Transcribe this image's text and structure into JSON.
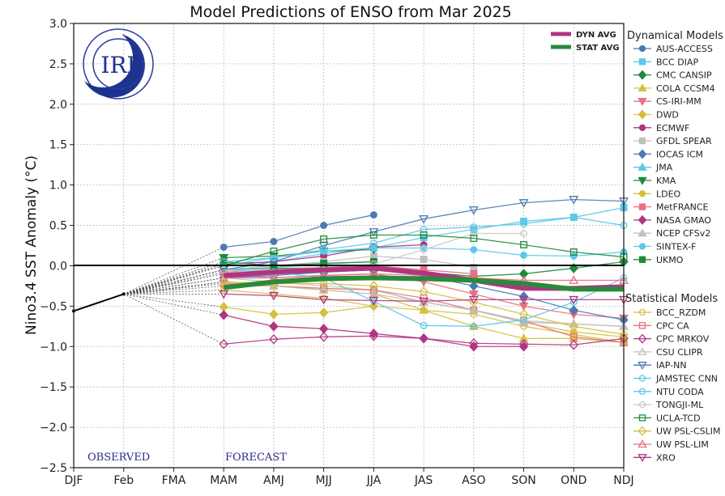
{
  "chart_data": {
    "type": "line",
    "title": "Model Predictions of ENSO from Mar 2025",
    "xlabel": "",
    "ylabel": "Nino3.4 SST Anomaly (°C)",
    "x": [
      "DJF",
      "Feb",
      "FMA",
      "MAM",
      "AMJ",
      "MJJ",
      "JJA",
      "JAS",
      "ASO",
      "SON",
      "OND",
      "NDJ"
    ],
    "ylim": [
      -2.5,
      3.0
    ],
    "yticks": [
      3.0,
      2.5,
      2.0,
      1.5,
      1.0,
      0.5,
      0.0,
      -0.5,
      -1.0,
      -1.5,
      -2.0,
      -2.5
    ],
    "ytick_labels": [
      "3.0",
      "2.5",
      "2.0",
      "1.5",
      "1.0",
      "0.5",
      "0.0",
      "−0.5",
      "−1.0",
      "−1.5",
      "−2.0",
      "−2.5"
    ],
    "grid": true,
    "logo_text": "IRI",
    "annotations": {
      "observed": "OBSERVED",
      "forecast": "FORECAST"
    },
    "observed": {
      "x": [
        "DJF",
        "Feb"
      ],
      "values": [
        -0.56,
        -0.35
      ],
      "color": "#000000"
    },
    "forecast_x": [
      "MAM",
      "AMJ",
      "MJJ",
      "JJA",
      "JAS",
      "ASO",
      "SON",
      "OND",
      "NDJ"
    ],
    "averages": [
      {
        "name": "DYN AVG",
        "color": "#b03580",
        "values": [
          -0.12,
          -0.08,
          -0.05,
          -0.03,
          -0.09,
          -0.18,
          -0.28,
          -0.28,
          -0.26
        ]
      },
      {
        "name": "STAT AVG",
        "color": "#2a8a3a",
        "values": [
          -0.27,
          -0.2,
          -0.16,
          -0.15,
          -0.16,
          -0.18,
          -0.22,
          -0.29,
          -0.29
        ]
      }
    ],
    "legend_dynamical_title": "Dynamical Models",
    "legend_statistical_title": "Statistical Models",
    "dynamical": [
      {
        "name": "AUS-ACCESS",
        "color": "#4a7ab5",
        "marker": "circle",
        "filled": true,
        "values": [
          0.23,
          0.3,
          0.5,
          0.63,
          null,
          null,
          null,
          null,
          null
        ]
      },
      {
        "name": "BCC DIAP",
        "color": "#5bc8e8",
        "marker": "square",
        "filled": true,
        "values": [
          0.02,
          0.05,
          0.15,
          0.22,
          0.35,
          0.45,
          0.55,
          0.6,
          0.72
        ]
      },
      {
        "name": "CMC CANSIP",
        "color": "#1f8a3a",
        "marker": "diamond",
        "filled": true,
        "values": [
          -0.05,
          -0.03,
          -0.03,
          -0.05,
          -0.08,
          -0.13,
          -0.1,
          -0.03,
          0.05
        ]
      },
      {
        "name": "COLA CCSM4",
        "color": "#d4c040",
        "marker": "triangle-up",
        "filled": true,
        "values": [
          -0.2,
          -0.25,
          -0.3,
          -0.35,
          -0.55,
          -0.75,
          -0.9,
          -0.9,
          -0.95
        ]
      },
      {
        "name": "CS-IRI-MM",
        "color": "#e87080",
        "marker": "triangle-down",
        "filled": true,
        "values": [
          -0.1,
          -0.15,
          -0.12,
          -0.1,
          -0.2,
          -0.35,
          -0.5,
          -0.6,
          -0.65
        ]
      },
      {
        "name": "DWD",
        "color": "#d4c040",
        "marker": "diamond",
        "filled": true,
        "values": [
          -0.51,
          -0.6,
          -0.58,
          -0.5,
          null,
          null,
          null,
          null,
          null
        ]
      },
      {
        "name": "ECMWF",
        "color": "#b03580",
        "marker": "circle",
        "filled": true,
        "values": [
          0.02,
          0.05,
          0.12,
          0.23,
          0.26,
          null,
          null,
          null,
          null
        ]
      },
      {
        "name": "GFDL SPEAR",
        "color": "#c0c0c0",
        "marker": "square",
        "filled": true,
        "values": [
          -0.05,
          0.0,
          0.05,
          0.12,
          0.08,
          -0.02,
          null,
          null,
          null
        ]
      },
      {
        "name": "IOCAS ICM",
        "color": "#4a7ab5",
        "marker": "diamond",
        "filled": true,
        "values": [
          -0.15,
          -0.12,
          -0.08,
          -0.05,
          -0.12,
          -0.25,
          -0.38,
          -0.55,
          -0.67
        ]
      },
      {
        "name": "JMA",
        "color": "#5bc8e8",
        "marker": "triangle-up",
        "filled": true,
        "values": [
          -0.05,
          -0.02,
          0.02,
          0.05,
          null,
          null,
          null,
          null,
          null
        ]
      },
      {
        "name": "KMA",
        "color": "#1f8a3a",
        "marker": "triangle-down",
        "filled": true,
        "values": [
          0.1,
          0.12,
          0.18,
          0.2,
          null,
          null,
          null,
          null,
          null
        ]
      },
      {
        "name": "LDEO",
        "color": "#d4c040",
        "marker": "circle",
        "filled": true,
        "values": [
          -0.25,
          -0.25,
          -0.28,
          -0.3,
          -0.45,
          -0.55,
          -0.7,
          -0.82,
          -0.88
        ]
      },
      {
        "name": "MetFRANCE",
        "color": "#e87080",
        "marker": "square",
        "filled": true,
        "values": [
          -0.08,
          -0.05,
          -0.02,
          0.0,
          -0.05,
          -0.1,
          null,
          null,
          null
        ]
      },
      {
        "name": "NASA GMAO",
        "color": "#b03580",
        "marker": "diamond",
        "filled": true,
        "values": [
          -0.61,
          -0.75,
          -0.78,
          -0.84,
          -0.9,
          -1.0,
          -1.0,
          null,
          null
        ]
      },
      {
        "name": "NCEP CFSv2",
        "color": "#c0c0c0",
        "marker": "triangle-up",
        "filled": true,
        "values": [
          -0.15,
          -0.2,
          -0.25,
          -0.3,
          -0.45,
          -0.55,
          -0.7,
          -0.72,
          -0.75
        ]
      },
      {
        "name": "SINTEX-F",
        "color": "#5bc8e8",
        "marker": "circle",
        "filled": true,
        "values": [
          0.0,
          0.1,
          0.18,
          0.22,
          0.22,
          0.2,
          0.13,
          0.12,
          0.17
        ]
      },
      {
        "name": "UKMO",
        "color": "#1f8a3a",
        "marker": "square",
        "filled": true,
        "values": [
          0.05,
          0.0,
          0.03,
          0.05,
          null,
          null,
          null,
          null,
          null
        ]
      }
    ],
    "statistical": [
      {
        "name": "BCC_RZDM",
        "color": "#d4c040",
        "marker": "circle",
        "filled": false,
        "values": [
          -0.3,
          -0.35,
          -0.4,
          -0.5,
          -0.55,
          -0.6,
          -0.75,
          -0.85,
          -0.95
        ]
      },
      {
        "name": "CPC CA",
        "color": "#e87080",
        "marker": "square",
        "filled": false,
        "values": [
          -0.22,
          -0.25,
          -0.28,
          -0.3,
          -0.4,
          -0.55,
          -0.68,
          -0.88,
          -0.95
        ]
      },
      {
        "name": "CPC MRKOV",
        "color": "#b03580",
        "marker": "diamond",
        "filled": false,
        "values": [
          -0.97,
          -0.91,
          -0.88,
          -0.87,
          -0.9,
          -0.96,
          -0.97,
          -0.98,
          -0.9
        ]
      },
      {
        "name": "CSU CLIPR",
        "color": "#c0c0c0",
        "marker": "triangle-up",
        "filled": false,
        "values": [
          -0.2,
          -0.25,
          -0.3,
          -0.35,
          -0.45,
          -0.55,
          -0.68,
          -0.72,
          -0.75
        ]
      },
      {
        "name": "IAP-NN",
        "color": "#4a7ab5",
        "marker": "triangle-down",
        "filled": false,
        "values": [
          -0.05,
          0.05,
          0.25,
          0.42,
          0.58,
          0.69,
          0.78,
          0.82,
          0.8
        ]
      },
      {
        "name": "JAMSTEC CNN",
        "color": "#5bc8e8",
        "marker": "circle",
        "filled": false,
        "values": [
          -0.05,
          -0.08,
          -0.15,
          -0.44,
          -0.74,
          -0.75,
          -0.67,
          -0.45,
          -0.15
        ]
      },
      {
        "name": "NTU CODA",
        "color": "#5bc8e8",
        "marker": "circle",
        "filled": false,
        "values": [
          0.05,
          0.1,
          0.2,
          0.28,
          0.45,
          0.48,
          0.52,
          0.6,
          0.5
        ]
      },
      {
        "name": "TONGJI-ML",
        "color": "#c8c8c8",
        "marker": "circle",
        "filled": false,
        "values": [
          -0.05,
          -0.1,
          -0.05,
          0.02,
          0.2,
          0.4,
          0.4,
          null,
          null
        ]
      },
      {
        "name": "UCLA-TCD",
        "color": "#1f8a3a",
        "marker": "square",
        "filled": false,
        "values": [
          0.0,
          0.18,
          0.33,
          0.38,
          0.38,
          0.34,
          0.26,
          0.17,
          0.11
        ]
      },
      {
        "name": "UW PSL-CSLIM",
        "color": "#d4c040",
        "marker": "diamond",
        "filled": false,
        "values": [
          -0.2,
          -0.22,
          -0.22,
          -0.25,
          -0.32,
          -0.45,
          -0.6,
          -0.75,
          -0.85
        ]
      },
      {
        "name": "UW PSL-LIM",
        "color": "#e87080",
        "marker": "triangle-up",
        "filled": false,
        "values": [
          -0.15,
          -0.15,
          -0.12,
          -0.1,
          -0.12,
          -0.15,
          -0.18,
          -0.18,
          -0.18
        ]
      },
      {
        "name": "XRO",
        "color": "#b03580",
        "marker": "triangle-down",
        "filled": false,
        "values": [
          -0.35,
          -0.37,
          -0.42,
          -0.43,
          -0.44,
          -0.42,
          -0.42,
          -0.42,
          -0.42
        ]
      }
    ]
  }
}
